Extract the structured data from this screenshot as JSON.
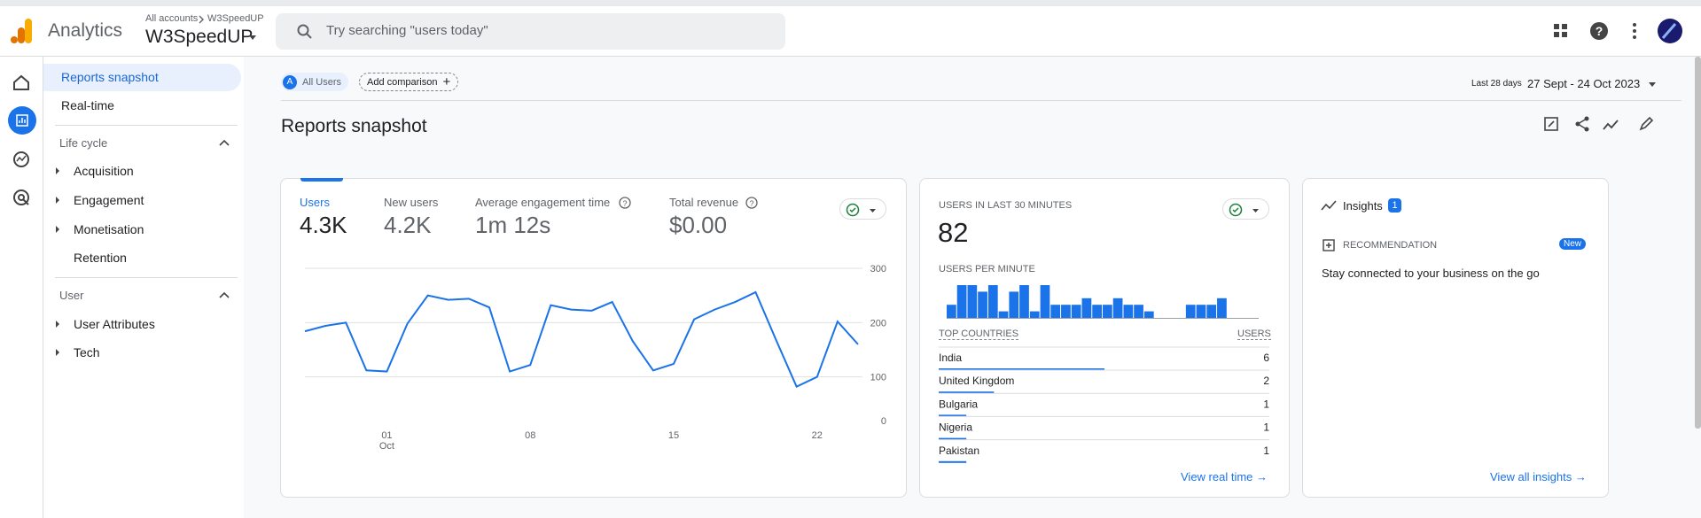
{
  "header": {
    "product": "Analytics",
    "breadcrumb": [
      "All accounts",
      "W3SpeedUP"
    ],
    "property": "W3SpeedUP",
    "search_placeholder": "Try searching \"users today\""
  },
  "sidebar": {
    "items": [
      "Reports snapshot",
      "Real-time"
    ],
    "sections": [
      {
        "title": "Life cycle",
        "items": [
          "Acquisition",
          "Engagement",
          "Monetisation",
          "Retention"
        ]
      },
      {
        "title": "User",
        "items": [
          "User Attributes",
          "Tech"
        ]
      }
    ]
  },
  "filters": {
    "segment_letter": "A",
    "segment": "All Users",
    "add_comparison": "Add comparison",
    "date_caption": "Last 28 days",
    "date_range": "27 Sept - 24 Oct 2023"
  },
  "page_title": "Reports snapshot",
  "overview_card": {
    "metrics": [
      {
        "label": "Users",
        "value": "4.3K"
      },
      {
        "label": "New users",
        "value": "4.2K"
      },
      {
        "label": "Average engagement time",
        "value": "1m 12s"
      },
      {
        "label": "Total revenue",
        "value": "$0.00"
      }
    ]
  },
  "realtime_card": {
    "title": "USERS IN LAST 30 MINUTES",
    "value": 82,
    "table_headers": [
      "TOP COUNTRIES",
      "USERS"
    ],
    "rows": [
      {
        "country": "India",
        "users": 6
      },
      {
        "country": "United Kingdom",
        "users": 2
      },
      {
        "country": "Bulgaria",
        "users": 1
      },
      {
        "country": "Nigeria",
        "users": 1
      },
      {
        "country": "Pakistan",
        "users": 1
      }
    ],
    "link": "View real time"
  },
  "insights_card": {
    "title": "Insights",
    "count": 1,
    "label": "RECOMMENDATION",
    "badge": "New",
    "text": "Stay connected to your business on the go",
    "link": "View all insights"
  },
  "chart_data": [
    {
      "type": "line",
      "color": "#1a73e8",
      "categories": [
        null,
        null,
        null,
        null,
        "01",
        null,
        null,
        null,
        null,
        null,
        null,
        "08",
        null,
        null,
        null,
        null,
        null,
        null,
        "15",
        null,
        null,
        null,
        null,
        null,
        null,
        "22",
        null,
        null
      ],
      "month_label": "Oct",
      "values": [
        184,
        194,
        200,
        112,
        110,
        198,
        250,
        242,
        244,
        228,
        110,
        122,
        232,
        224,
        222,
        238,
        166,
        112,
        124,
        206,
        224,
        238,
        256,
        168,
        82,
        100,
        202,
        160
      ],
      "ylim": [
        0,
        300
      ],
      "yticks": [
        0,
        100,
        200,
        300
      ],
      "grid": true
    },
    {
      "type": "bar",
      "title": "USERS PER MINUTE",
      "color": "#1a73e8",
      "values": [
        2,
        5,
        5,
        4,
        5,
        1,
        4,
        5,
        1,
        5,
        2,
        2,
        2,
        3,
        2,
        2,
        3,
        2,
        2,
        1,
        0,
        0,
        0,
        2,
        2,
        2,
        3,
        0,
        0,
        0
      ]
    }
  ]
}
